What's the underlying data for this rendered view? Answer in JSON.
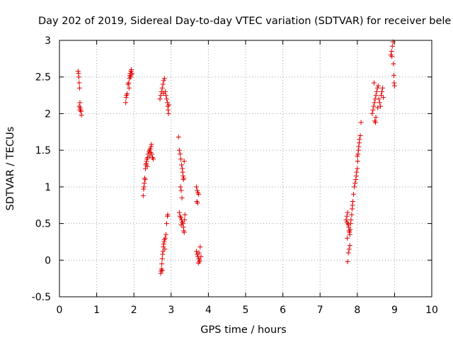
{
  "colors": {
    "series": "#e00000",
    "grid": "#a0a0a0",
    "axis": "#000000"
  },
  "chart_data": {
    "type": "scatter",
    "title": "Day 202 of 2019, Sidereal Day-to-day VTEC variation (SDTVAR) for receiver bele",
    "xlabel": "GPS time / hours",
    "ylabel": "SDTVAR / TECUs",
    "xlim": [
      0,
      10
    ],
    "ylim": [
      -0.5,
      3
    ],
    "xticks": [
      0,
      1,
      2,
      3,
      4,
      5,
      6,
      7,
      8,
      9,
      10
    ],
    "xtick_labels": [
      "0",
      "1",
      "2",
      "3",
      "4",
      "5",
      "6",
      "7",
      "8",
      "9",
      "10"
    ],
    "yticks": [
      -0.5,
      0,
      0.5,
      1,
      1.5,
      2,
      2.5,
      3
    ],
    "ytick_labels": [
      "-0.5",
      "0",
      "0.5",
      "1",
      "1.5",
      "2",
      "2.5",
      "3"
    ],
    "grid": true,
    "marker": "+",
    "series": [
      {
        "name": "SDTVAR",
        "points": [
          [
            0.5,
            2.58
          ],
          [
            0.51,
            2.55
          ],
          [
            0.52,
            2.5
          ],
          [
            0.53,
            2.42
          ],
          [
            0.54,
            2.35
          ],
          [
            0.55,
            2.15
          ],
          [
            0.56,
            2.08
          ],
          [
            0.57,
            2.05
          ],
          [
            0.58,
            2.03
          ],
          [
            0.59,
            1.98
          ],
          [
            0.55,
            2.05
          ],
          [
            0.53,
            2.1
          ],
          [
            1.78,
            2.15
          ],
          [
            1.79,
            2.22
          ],
          [
            1.8,
            2.25
          ],
          [
            1.82,
            2.27
          ],
          [
            1.84,
            2.4
          ],
          [
            1.86,
            2.42
          ],
          [
            1.88,
            2.48
          ],
          [
            1.89,
            2.52
          ],
          [
            1.9,
            2.55
          ],
          [
            1.91,
            2.5
          ],
          [
            1.92,
            2.58
          ],
          [
            1.93,
            2.6
          ],
          [
            1.94,
            2.53
          ],
          [
            1.87,
            2.35
          ],
          [
            1.95,
            2.55
          ],
          [
            2.25,
            0.88
          ],
          [
            2.26,
            0.97
          ],
          [
            2.27,
            1.0
          ],
          [
            2.28,
            1.05
          ],
          [
            2.29,
            1.12
          ],
          [
            2.3,
            1.1
          ],
          [
            2.31,
            1.25
          ],
          [
            2.32,
            1.3
          ],
          [
            2.33,
            1.32
          ],
          [
            2.34,
            1.35
          ],
          [
            2.35,
            1.38
          ],
          [
            2.37,
            1.4
          ],
          [
            2.38,
            1.45
          ],
          [
            2.4,
            1.48
          ],
          [
            2.42,
            1.5
          ],
          [
            2.44,
            1.52
          ],
          [
            2.46,
            1.55
          ],
          [
            2.47,
            1.58
          ],
          [
            2.48,
            1.45
          ],
          [
            2.5,
            1.4
          ],
          [
            2.52,
            1.38
          ],
          [
            2.36,
            1.28
          ],
          [
            2.43,
            1.42
          ],
          [
            2.45,
            1.47
          ],
          [
            2.7,
            2.2
          ],
          [
            2.72,
            2.25
          ],
          [
            2.74,
            2.3
          ],
          [
            2.76,
            2.35
          ],
          [
            2.78,
            2.4
          ],
          [
            2.8,
            2.45
          ],
          [
            2.82,
            2.48
          ],
          [
            2.84,
            2.3
          ],
          [
            2.86,
            2.25
          ],
          [
            2.88,
            2.2
          ],
          [
            2.9,
            2.15
          ],
          [
            2.91,
            2.1
          ],
          [
            2.92,
            2.05
          ],
          [
            2.93,
            2.0
          ],
          [
            2.94,
            2.12
          ],
          [
            2.79,
            2.28
          ],
          [
            2.72,
            -0.18
          ],
          [
            2.73,
            -0.15
          ],
          [
            2.74,
            -0.12
          ],
          [
            2.75,
            -0.05
          ],
          [
            2.76,
            0.02
          ],
          [
            2.77,
            0.08
          ],
          [
            2.78,
            0.12
          ],
          [
            2.79,
            0.18
          ],
          [
            2.8,
            0.22
          ],
          [
            2.81,
            0.25
          ],
          [
            2.82,
            0.28
          ],
          [
            2.84,
            0.3
          ],
          [
            2.86,
            0.35
          ],
          [
            2.88,
            0.5
          ],
          [
            2.9,
            0.6
          ],
          [
            2.91,
            0.62
          ],
          [
            2.83,
            0.15
          ],
          [
            2.76,
            -0.14
          ],
          [
            3.2,
            1.68
          ],
          [
            3.22,
            1.5
          ],
          [
            3.24,
            1.45
          ],
          [
            3.26,
            1.38
          ],
          [
            3.28,
            1.3
          ],
          [
            3.3,
            1.25
          ],
          [
            3.31,
            1.2
          ],
          [
            3.32,
            1.15
          ],
          [
            3.33,
            1.1
          ],
          [
            3.34,
            1.12
          ],
          [
            3.25,
            1.0
          ],
          [
            3.27,
            0.95
          ],
          [
            3.35,
            1.35
          ],
          [
            3.29,
            0.85
          ],
          [
            3.22,
            0.65
          ],
          [
            3.24,
            0.6
          ],
          [
            3.26,
            0.58
          ],
          [
            3.28,
            0.55
          ],
          [
            3.3,
            0.52
          ],
          [
            3.32,
            0.5
          ],
          [
            3.33,
            0.45
          ],
          [
            3.34,
            0.4
          ],
          [
            3.35,
            0.38
          ],
          [
            3.36,
            0.55
          ],
          [
            3.37,
            0.62
          ],
          [
            3.27,
            0.48
          ],
          [
            3.68,
            1.0
          ],
          [
            3.7,
            0.95
          ],
          [
            3.72,
            0.92
          ],
          [
            3.74,
            0.9
          ],
          [
            3.69,
            0.8
          ],
          [
            3.71,
            0.78
          ],
          [
            3.68,
            0.12
          ],
          [
            3.7,
            0.08
          ],
          [
            3.72,
            0.05
          ],
          [
            3.74,
            0.02
          ],
          [
            3.76,
            -0.02
          ],
          [
            3.77,
            0.0
          ],
          [
            3.78,
            0.18
          ],
          [
            3.8,
            0.05
          ],
          [
            3.73,
            -0.04
          ],
          [
            3.75,
            0.1
          ],
          [
            7.7,
            0.55
          ],
          [
            7.72,
            0.6
          ],
          [
            7.74,
            0.65
          ],
          [
            7.75,
            0.5
          ],
          [
            7.76,
            0.48
          ],
          [
            7.77,
            0.45
          ],
          [
            7.78,
            0.4
          ],
          [
            7.79,
            0.38
          ],
          [
            7.8,
            0.35
          ],
          [
            7.81,
            0.42
          ],
          [
            7.82,
            0.5
          ],
          [
            7.83,
            0.55
          ],
          [
            7.73,
            0.3
          ],
          [
            7.76,
            0.1
          ],
          [
            7.78,
            0.15
          ],
          [
            7.74,
            -0.02
          ],
          [
            7.8,
            0.2
          ],
          [
            7.72,
            0.52
          ],
          [
            7.85,
            0.62
          ],
          [
            7.86,
            0.7
          ],
          [
            7.87,
            0.75
          ],
          [
            7.88,
            0.8
          ],
          [
            7.9,
            0.9
          ],
          [
            7.92,
            1.0
          ],
          [
            7.94,
            1.05
          ],
          [
            7.96,
            1.1
          ],
          [
            7.98,
            1.2
          ],
          [
            8.0,
            1.25
          ],
          [
            8.01,
            1.35
          ],
          [
            8.02,
            1.45
          ],
          [
            8.03,
            1.5
          ],
          [
            8.04,
            1.55
          ],
          [
            8.05,
            1.6
          ],
          [
            8.06,
            1.65
          ],
          [
            8.08,
            1.7
          ],
          [
            8.1,
            1.88
          ],
          [
            7.97,
            1.15
          ],
          [
            8.0,
            1.42
          ],
          [
            8.4,
            2.0
          ],
          [
            8.42,
            2.05
          ],
          [
            8.44,
            2.1
          ],
          [
            8.46,
            2.15
          ],
          [
            8.48,
            2.2
          ],
          [
            8.5,
            2.25
          ],
          [
            8.52,
            2.3
          ],
          [
            8.54,
            2.35
          ],
          [
            8.56,
            2.38
          ],
          [
            8.45,
            2.42
          ],
          [
            8.47,
            1.9
          ],
          [
            8.5,
            1.95
          ],
          [
            8.58,
            2.2
          ],
          [
            8.6,
            2.15
          ],
          [
            8.62,
            2.1
          ],
          [
            8.64,
            2.25
          ],
          [
            8.66,
            2.3
          ],
          [
            8.68,
            2.35
          ],
          [
            8.7,
            2.22
          ],
          [
            8.55,
            2.08
          ],
          [
            8.49,
            1.88
          ],
          [
            8.9,
            2.8
          ],
          [
            8.92,
            2.85
          ],
          [
            8.94,
            2.92
          ],
          [
            8.96,
            2.98
          ],
          [
            8.97,
            2.68
          ],
          [
            8.98,
            2.52
          ],
          [
            8.99,
            2.42
          ],
          [
            9.0,
            2.38
          ],
          [
            8.93,
            2.78
          ]
        ]
      }
    ]
  }
}
